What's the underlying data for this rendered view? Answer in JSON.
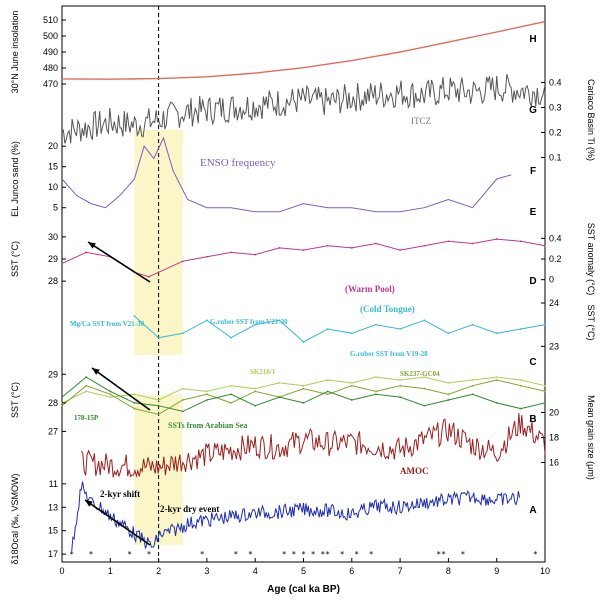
{
  "chart_data": {
    "type": "line",
    "xlabel": "Age (cal ka BP)",
    "xlim": [
      0,
      10
    ],
    "x_ticks": [
      "0",
      "1",
      "2",
      "3",
      "4",
      "5",
      "6",
      "7",
      "8",
      "9",
      "10"
    ],
    "dashed_line_x": 2,
    "highlight_bands": [
      [
        1.5,
        2.5
      ]
    ],
    "event_stars_x": [
      0.2,
      0.6,
      1.4,
      1.8,
      2.9,
      3.6,
      3.9,
      4.6,
      4.8,
      5.0,
      5.2,
      5.4,
      5.5,
      5.8,
      6.1,
      6.4,
      7.8,
      7.9,
      8.3,
      9.8
    ],
    "panels": [
      {
        "id": "H",
        "letter": "H",
        "ylabel": "30°N June insolation",
        "y_axis_side": "left",
        "y_ticks": [
          "510",
          "500",
          "490",
          "480",
          "470"
        ],
        "series": [
          {
            "name": "",
            "color": "#e36b5c",
            "x": [
              0,
              1,
              2,
              3,
              4,
              5,
              6,
              7,
              8,
              9,
              10
            ],
            "y": [
              473.2,
              473,
              473.4,
              474.5,
              476.8,
              480.2,
              484.6,
              490,
              496.2,
              502.5,
              509
            ]
          }
        ]
      },
      {
        "id": "G",
        "letter": "G",
        "label": "ITCZ",
        "ylabel": "Cariaco Basin Ti (%)",
        "y_axis_side": "right",
        "y_ticks": [
          "0.4",
          "0.3",
          "0.2",
          "0.1"
        ],
        "series": [
          {
            "name": "",
            "color": "#555555",
            "x": [
              0,
              0.5,
              1,
              1.5,
              2,
              2.5,
              3,
              3.5,
              4,
              4.5,
              5,
              5.5,
              6,
              6.5,
              7,
              7.5,
              8,
              8.5,
              9,
              9.5,
              10
            ],
            "y": [
              0.2,
              0.22,
              0.24,
              0.23,
              0.25,
              0.28,
              0.29,
              0.3,
              0.31,
              0.32,
              0.33,
              0.32,
              0.34,
              0.35,
              0.36,
              0.35,
              0.37,
              0.36,
              0.38,
              0.37,
              0.36
            ]
          }
        ]
      },
      {
        "id": "F",
        "letter": "F",
        "label": "ENSO frequency",
        "ylabel": "EL Junco sand (%)",
        "y_axis_side": "left",
        "y_ticks": [
          "20",
          "15",
          "10",
          "5"
        ],
        "series": [
          {
            "name": "",
            "color": "#7b5cc9",
            "x": [
              0,
              0.3,
              0.6,
              0.9,
              1.2,
              1.5,
              1.7,
              1.9,
              2.1,
              2.3,
              2.6,
              3,
              3.5,
              4,
              4.5,
              5,
              5.5,
              6,
              6.5,
              7,
              7.5,
              8,
              8.5,
              9,
              9.3
            ],
            "y": [
              12,
              8,
              6,
              5,
              8,
              12,
              20,
              17,
              22,
              14,
              7,
              5,
              5,
              4,
              4,
              6,
              5,
              5,
              4,
              4,
              5,
              7,
              5,
              12,
              13
            ]
          }
        ]
      },
      {
        "id": "E",
        "letter": "E",
        "label": "(Warm Pool)",
        "ylabel": "SST (°C)",
        "ylabel_right": "SST anomaly (°C)",
        "y_axis_side": "both",
        "y_ticks": [
          "30",
          "29",
          "28"
        ],
        "y_ticks_right": [
          "0.4",
          "0.2",
          "0"
        ],
        "series": [
          {
            "name": "",
            "color": "#c2368a",
            "x": [
              0,
              0.5,
              1,
              1.5,
              1.8,
              2,
              2.5,
              3,
              3.5,
              4,
              4.5,
              5,
              5.5,
              6,
              6.5,
              7,
              7.5,
              8,
              8.5,
              9,
              9.5,
              10
            ],
            "y": [
              28.8,
              29.3,
              29.1,
              28.4,
              28.2,
              28.4,
              28.9,
              29.1,
              29.3,
              29.2,
              29.5,
              29.4,
              29.6,
              29.5,
              29.7,
              29.4,
              29.6,
              29.8,
              29.7,
              29.9,
              29.8,
              29.6
            ]
          }
        ]
      },
      {
        "id": "D",
        "letter": "D",
        "label": "(Cold Tongue)",
        "ylabel_right": "SST (°C)",
        "y_axis_side": "right",
        "y_ticks": [
          "24",
          "23"
        ],
        "notes": [
          "Mg/Ca SST from V21-30",
          "G.ruber SST from V21-30",
          "G.ruber SST from V19-28"
        ],
        "series": [
          {
            "name": "",
            "color": "#36b8d6",
            "x": [
              1.5,
              2,
              2.5,
              3,
              3.5,
              4,
              4.5,
              5,
              5.5,
              6,
              6.5,
              7,
              7.5,
              8,
              8.5,
              9,
              9.5,
              10
            ],
            "y": [
              23.7,
              23.2,
              23.3,
              23.6,
              23.2,
              23.5,
              23.6,
              23.1,
              23.4,
              23.3,
              23.5,
              23.4,
              23.6,
              23.3,
              23.5,
              23.3,
              23.4,
              23.5
            ]
          }
        ]
      },
      {
        "id": "C",
        "letter": "C",
        "ylabel": "SST (°C)",
        "y_axis_side": "left",
        "y_ticks": [
          "29",
          "28",
          "27"
        ],
        "label": "SSTs from Arabian Sea",
        "series": [
          {
            "name": "SK218/1",
            "color": "#aacf52",
            "x": [
              0,
              0.5,
              1,
              1.5,
              2,
              2.5,
              3,
              3.5,
              4,
              4.5,
              5,
              5.5,
              6,
              6.5,
              7,
              7.5,
              8,
              8.5,
              9,
              9.5,
              10
            ],
            "y": [
              28.0,
              28.4,
              28.2,
              28.3,
              28.1,
              28.5,
              28.4,
              28.6,
              28.5,
              28.7,
              28.6,
              28.8,
              28.7,
              28.9,
              28.8,
              28.9,
              28.7,
              28.8,
              28.9,
              28.8,
              28.6
            ]
          },
          {
            "name": "SK237-GC04",
            "color": "#7fa72a",
            "x": [
              0,
              0.5,
              1,
              1.5,
              2,
              2.5,
              3,
              3.5,
              4,
              4.5,
              5,
              5.5,
              6,
              6.5,
              7,
              7.5,
              8,
              8.5,
              9,
              9.5,
              10
            ],
            "y": [
              27.9,
              28.6,
              28.3,
              27.8,
              27.6,
              28.1,
              28.3,
              28.0,
              28.4,
              28.2,
              28.5,
              28.3,
              28.6,
              28.4,
              28.6,
              28.5,
              28.3,
              28.6,
              28.8,
              28.6,
              28.4
            ]
          },
          {
            "name": "178-15P",
            "color": "#2e8b2e",
            "x": [
              0,
              0.5,
              1,
              1.5,
              2,
              2.5,
              3,
              3.5,
              4,
              4.5,
              5,
              5.5,
              6,
              6.5,
              7,
              7.5,
              8,
              8.5,
              9,
              9.5,
              10
            ],
            "y": [
              28.2,
              28.9,
              28.4,
              28.0,
              27.9,
              27.7,
              28.1,
              28.3,
              27.9,
              28.2,
              28.0,
              28.4,
              28.1,
              28.3,
              28.2,
              27.9,
              28.1,
              28.3,
              28.0,
              27.8,
              28.0
            ]
          }
        ]
      },
      {
        "id": "B",
        "letter": "B",
        "label": "AMOC",
        "ylabel_right": "Mean grain size (μm)",
        "y_axis_side": "right",
        "y_ticks": [
          "20",
          "18",
          "16"
        ],
        "series": [
          {
            "name": "",
            "color": "#9a1f1f",
            "x": [
              0.4,
              1,
              1.5,
              2,
              2.5,
              3,
              3.5,
              4,
              4.5,
              5,
              5.5,
              6,
              6.5,
              7,
              7.5,
              8,
              8.5,
              9,
              9.5,
              10
            ],
            "y": [
              16.0,
              15.8,
              15.7,
              15.6,
              16.2,
              16.6,
              17.0,
              17.4,
              17.2,
              17.8,
              17.5,
              17.6,
              17.3,
              17.0,
              17.8,
              18.6,
              17.4,
              16.8,
              19.2,
              17.5
            ]
          }
        ]
      },
      {
        "id": "A",
        "letter": "A",
        "ylabel": "δ18Ocal (‰, VSMOW)",
        "y_axis_side": "left",
        "y_ticks": [
          "11",
          "13",
          "15",
          "17"
        ],
        "labels": [
          "2-kyr shift",
          "2-kyr dry event"
        ],
        "series": [
          {
            "name": "",
            "color": "#1f2fb0",
            "x": [
              0.2,
              0.4,
              0.6,
              0.8,
              1,
              1.3,
              1.6,
              1.9,
              2,
              2.3,
              2.6,
              3,
              3.5,
              4,
              4.5,
              5,
              5.5,
              6,
              6.5,
              7,
              7.5,
              8,
              8.5,
              9,
              9.5
            ],
            "y": [
              16.5,
              11.2,
              12.6,
              13.0,
              13.8,
              14.6,
              15.6,
              16.4,
              15.4,
              15.0,
              14.4,
              14.1,
              13.8,
              13.5,
              13.4,
              13.2,
              13.3,
              13.6,
              12.9,
              13.0,
              12.6,
              12.4,
              12.1,
              12.4,
              12.2
            ]
          }
        ]
      }
    ]
  }
}
